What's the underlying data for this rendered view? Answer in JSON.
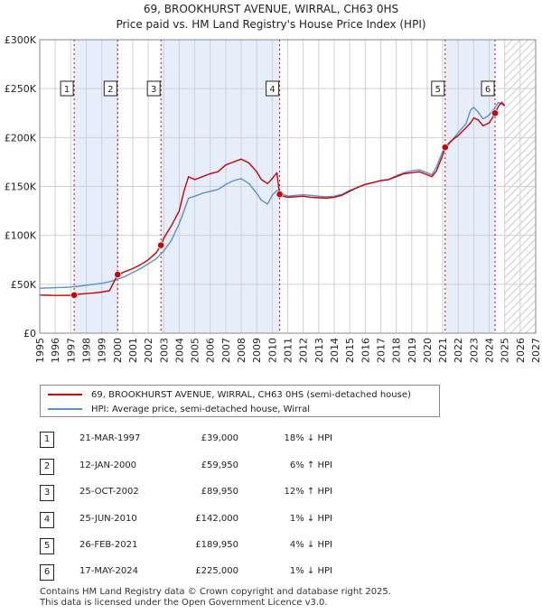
{
  "chart_data": {
    "type": "line",
    "title": "69, BROOKHURST AVENUE, WIRRAL, CH63 0HS",
    "subtitle": "Price paid vs. HM Land Registry's House Price Index (HPI)",
    "xlim": [
      1995,
      2027
    ],
    "ylim": [
      0,
      300000
    ],
    "y_ticks": [
      {
        "value": 0,
        "label": "£0"
      },
      {
        "value": 50000,
        "label": "£50K"
      },
      {
        "value": 100000,
        "label": "£100K"
      },
      {
        "value": 150000,
        "label": "£150K"
      },
      {
        "value": 200000,
        "label": "£200K"
      },
      {
        "value": 250000,
        "label": "£250K"
      },
      {
        "value": 300000,
        "label": "£300K"
      }
    ],
    "x_ticks": [
      "1995",
      "1996",
      "1997",
      "1998",
      "1999",
      "2000",
      "2001",
      "2002",
      "2003",
      "2004",
      "2005",
      "2006",
      "2007",
      "2008",
      "2009",
      "2010",
      "2011",
      "2012",
      "2013",
      "2014",
      "2015",
      "2016",
      "2017",
      "2018",
      "2019",
      "2020",
      "2021",
      "2022",
      "2023",
      "2024",
      "2025",
      "2026",
      "2027"
    ],
    "grid": true,
    "hatched_future_from": 2025.0,
    "shaded_bands": [
      [
        1997.22,
        2000.03
      ],
      [
        2002.82,
        2010.48
      ],
      [
        2021.16,
        2024.38
      ]
    ],
    "series": [
      {
        "name": "69, BROOKHURST AVENUE, WIRRAL, CH63 0HS (semi-detached house)",
        "color": "#cc0000",
        "x": [
          1995.0,
          1995.5,
          1996.0,
          1996.5,
          1997.0,
          1997.22,
          1997.5,
          1998.0,
          1998.5,
          1999.0,
          1999.5,
          2000.03,
          2000.5,
          2001.0,
          2001.5,
          2002.0,
          2002.5,
          2002.82,
          2003.0,
          2003.5,
          2004.0,
          2004.3,
          2004.6,
          2005.0,
          2005.5,
          2006.0,
          2006.5,
          2007.0,
          2007.5,
          2008.0,
          2008.5,
          2009.0,
          2009.3,
          2009.7,
          2010.0,
          2010.3,
          2010.48,
          2010.7,
          2011.0,
          2011.5,
          2012.0,
          2012.5,
          2013.0,
          2013.5,
          2014.0,
          2014.5,
          2015.0,
          2015.5,
          2016.0,
          2016.5,
          2017.0,
          2017.5,
          2018.0,
          2018.5,
          2019.0,
          2019.5,
          2020.0,
          2020.3,
          2020.6,
          2021.0,
          2021.16,
          2021.5,
          2022.0,
          2022.5,
          2022.8,
          2023.0,
          2023.3,
          2023.6,
          2024.0,
          2024.2,
          2024.38,
          2024.6,
          2024.8,
          2025.0
        ],
        "values": [
          39000,
          38800,
          38600,
          38600,
          38800,
          39000,
          39800,
          40500,
          41200,
          42000,
          43500,
          59950,
          63000,
          66000,
          70000,
          75000,
          82000,
          89950,
          97000,
          110000,
          125000,
          145000,
          160000,
          157000,
          160000,
          163000,
          165000,
          172000,
          175000,
          178000,
          174000,
          165000,
          157000,
          153000,
          158000,
          164000,
          142000,
          140000,
          139000,
          139500,
          140000,
          139000,
          138500,
          138000,
          139000,
          141000,
          145000,
          149000,
          152000,
          154000,
          156000,
          157000,
          160000,
          163000,
          164000,
          165000,
          162000,
          160000,
          166000,
          182000,
          189950,
          196000,
          202000,
          210000,
          215000,
          220000,
          218000,
          212000,
          215000,
          220000,
          225000,
          232000,
          236000,
          233000
        ]
      },
      {
        "name": "HPI: Average price, semi-detached house, Wirral",
        "color": "#5b8fd0",
        "x": [
          1995.0,
          1995.5,
          1996.0,
          1996.5,
          1997.0,
          1997.5,
          1998.0,
          1998.5,
          1999.0,
          1999.5,
          2000.0,
          2000.5,
          2001.0,
          2001.5,
          2002.0,
          2002.5,
          2003.0,
          2003.5,
          2004.0,
          2004.3,
          2004.6,
          2005.0,
          2005.5,
          2006.0,
          2006.5,
          2007.0,
          2007.5,
          2008.0,
          2008.5,
          2009.0,
          2009.3,
          2009.7,
          2010.0,
          2010.3,
          2010.5,
          2010.7,
          2011.0,
          2011.5,
          2012.0,
          2012.5,
          2013.0,
          2013.5,
          2014.0,
          2014.5,
          2015.0,
          2015.5,
          2016.0,
          2016.5,
          2017.0,
          2017.5,
          2018.0,
          2018.5,
          2019.0,
          2019.5,
          2020.0,
          2020.3,
          2020.6,
          2021.0,
          2021.5,
          2022.0,
          2022.5,
          2022.8,
          2023.0,
          2023.3,
          2023.6,
          2024.0,
          2024.3,
          2024.6,
          2024.8,
          2025.0
        ],
        "values": [
          46000,
          46200,
          46500,
          46800,
          47200,
          48000,
          49000,
          50000,
          51000,
          52500,
          55000,
          58000,
          62000,
          66000,
          71000,
          76000,
          84000,
          95000,
          112000,
          125000,
          138000,
          140000,
          143000,
          145000,
          147000,
          152000,
          156000,
          158000,
          153000,
          143000,
          136000,
          132000,
          141000,
          146000,
          144000,
          142000,
          140000,
          141000,
          141500,
          141000,
          140000,
          139500,
          140000,
          142000,
          146000,
          149000,
          152000,
          154000,
          156000,
          157000,
          161000,
          164000,
          166000,
          167000,
          164000,
          162000,
          170000,
          186000,
          195000,
          205000,
          214000,
          228000,
          231000,
          226000,
          219000,
          223000,
          229000,
          236000,
          234000,
          232000
        ]
      }
    ],
    "sale_markers": [
      {
        "label": "1",
        "x": 1997.22,
        "value": 39000
      },
      {
        "label": "2",
        "x": 2000.03,
        "value": 59950
      },
      {
        "label": "3",
        "x": 2002.82,
        "value": 89950
      },
      {
        "label": "4",
        "x": 2010.48,
        "value": 142000
      },
      {
        "label": "5",
        "x": 2021.16,
        "value": 189950
      },
      {
        "label": "6",
        "x": 2024.38,
        "value": 225000
      }
    ]
  },
  "legend": {
    "items": [
      {
        "label": "69, BROOKHURST AVENUE, WIRRAL, CH63 0HS (semi-detached house)",
        "color": "#cc0000"
      },
      {
        "label": "HPI: Average price, semi-detached house, Wirral",
        "color": "#5b8fd0"
      }
    ]
  },
  "sales": [
    {
      "num": "1",
      "date": "21-MAR-1997",
      "price": "£39,000",
      "delta": "18% ↓ HPI"
    },
    {
      "num": "2",
      "date": "12-JAN-2000",
      "price": "£59,950",
      "delta": "6% ↑ HPI"
    },
    {
      "num": "3",
      "date": "25-OCT-2002",
      "price": "£89,950",
      "delta": "12% ↑ HPI"
    },
    {
      "num": "4",
      "date": "25-JUN-2010",
      "price": "£142,000",
      "delta": "1% ↓ HPI"
    },
    {
      "num": "5",
      "date": "26-FEB-2021",
      "price": "£189,950",
      "delta": "4% ↓ HPI"
    },
    {
      "num": "6",
      "date": "17-MAY-2024",
      "price": "£225,000",
      "delta": "1% ↓ HPI"
    }
  ],
  "footer": {
    "line1": "Contains HM Land Registry data © Crown copyright and database right 2025.",
    "line2": "This data is licensed under the Open Government Licence v3.0."
  },
  "colors": {
    "property_line": "#cc0000",
    "hpi_line": "#5b8fd0",
    "band_fill": "#e6eefb",
    "grid": "#d0d0d0"
  }
}
